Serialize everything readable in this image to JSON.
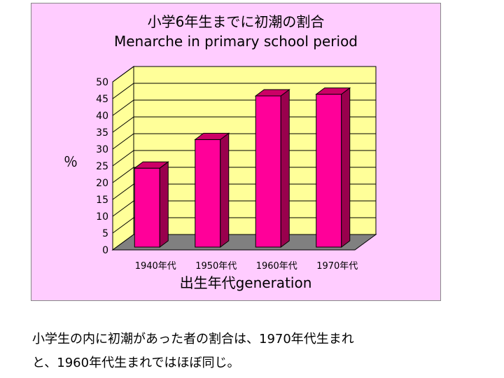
{
  "chart_data": {
    "type": "bar",
    "title": "小学6年生までに初潮の割合",
    "subtitle": "Menarche in primary school period",
    "categories": [
      "1940年代",
      "1950年代",
      "1960年代",
      "1970年代"
    ],
    "values": [
      23.5,
      32,
      45,
      45.5
    ],
    "ylabel": "％",
    "xlabel": "出生年代generation",
    "ylim": [
      0,
      50
    ],
    "yticks": [
      "0",
      "5",
      "10",
      "15",
      "20",
      "25",
      "30",
      "35",
      "40",
      "45",
      "50"
    ],
    "grid": true,
    "legend": "none",
    "colors": {
      "bar_front": "#ff0099",
      "bar_side": "#99004d",
      "bar_top": "#cc0066",
      "wall": "#ffff99",
      "floor": "#808080",
      "panel": "#ffccff"
    }
  },
  "caption": {
    "line1": "小学生の内に初潮があった者の割合は、1970年代生まれ",
    "line2": "と、1960年代生まれではほぼ同じ。"
  }
}
